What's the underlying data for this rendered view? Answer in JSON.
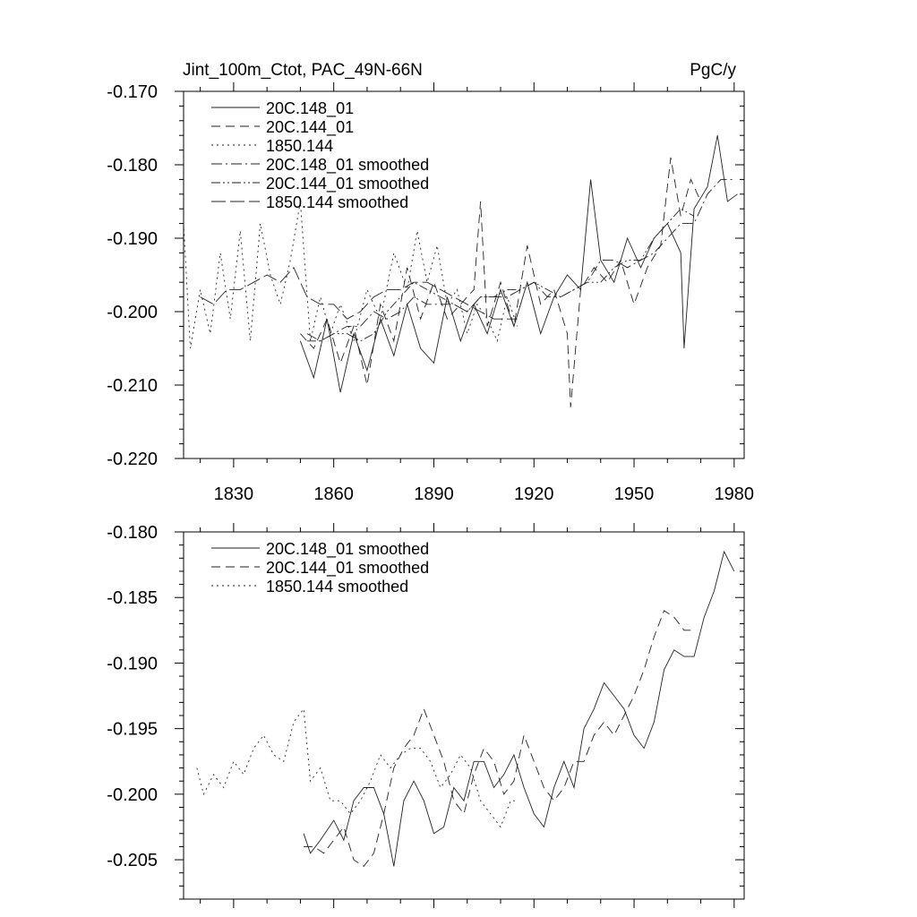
{
  "chart_data": [
    {
      "type": "line",
      "title": "Jint_100m_Ctot, PAC_49N-66N",
      "units": "PgC/y",
      "xlabel": "",
      "ylabel": "",
      "xlim": [
        1815,
        1983
      ],
      "ylim": [
        -0.22,
        -0.17
      ],
      "xticks": [
        1830,
        1860,
        1890,
        1920,
        1950,
        1980
      ],
      "xtick_labels": [
        "1830",
        "1860",
        "1890",
        "1920",
        "1950",
        "1980"
      ],
      "yticks": [
        -0.22,
        -0.21,
        -0.2,
        -0.19,
        -0.18,
        -0.17
      ],
      "ytick_labels": [
        "-0.220",
        "-0.210",
        "-0.200",
        "-0.190",
        "-0.180",
        "-0.170"
      ],
      "legend": "top-left",
      "series": [
        {
          "name": "20C.148_01",
          "style": "solid",
          "x": [
            1850,
            1854,
            1858,
            1862,
            1866,
            1870,
            1874,
            1878,
            1882,
            1886,
            1890,
            1894,
            1898,
            1902,
            1906,
            1910,
            1914,
            1918,
            1922,
            1926,
            1930,
            1934,
            1937,
            1940,
            1944,
            1948,
            1952,
            1956,
            1960,
            1964,
            1965,
            1968,
            1972,
            1975,
            1978,
            1981
          ],
          "y": [
            -0.204,
            -0.209,
            -0.201,
            -0.211,
            -0.203,
            -0.208,
            -0.201,
            -0.206,
            -0.199,
            -0.205,
            -0.207,
            -0.198,
            -0.204,
            -0.199,
            -0.203,
            -0.197,
            -0.202,
            -0.196,
            -0.203,
            -0.198,
            -0.195,
            -0.197,
            -0.182,
            -0.193,
            -0.196,
            -0.19,
            -0.194,
            -0.19,
            -0.188,
            -0.192,
            -0.205,
            -0.186,
            -0.183,
            -0.176,
            -0.185,
            -0.184
          ]
        },
        {
          "name": "20C.144_01",
          "style": "dashed",
          "x": [
            1850,
            1854,
            1858,
            1862,
            1866,
            1870,
            1874,
            1878,
            1882,
            1886,
            1890,
            1894,
            1898,
            1902,
            1904,
            1906,
            1910,
            1914,
            1918,
            1922,
            1926,
            1930,
            1931,
            1934,
            1938,
            1942,
            1946,
            1950,
            1954,
            1958,
            1961,
            1964,
            1967,
            1970
          ],
          "y": [
            -0.203,
            -0.205,
            -0.201,
            -0.207,
            -0.202,
            -0.21,
            -0.199,
            -0.204,
            -0.194,
            -0.201,
            -0.196,
            -0.201,
            -0.199,
            -0.197,
            -0.185,
            -0.202,
            -0.196,
            -0.202,
            -0.191,
            -0.199,
            -0.197,
            -0.203,
            -0.213,
            -0.197,
            -0.194,
            -0.196,
            -0.193,
            -0.199,
            -0.194,
            -0.191,
            -0.179,
            -0.187,
            -0.182,
            -0.185
          ]
        },
        {
          "name": "1850.144",
          "style": "dotted",
          "x": [
            1815,
            1817,
            1820,
            1823,
            1826,
            1829,
            1832,
            1835,
            1838,
            1841,
            1844,
            1847,
            1850,
            1853,
            1856,
            1859,
            1862,
            1866,
            1870,
            1874,
            1878,
            1882,
            1885,
            1888,
            1891,
            1894,
            1897,
            1900,
            1903,
            1906,
            1909,
            1912,
            1915
          ],
          "y": [
            -0.188,
            -0.205,
            -0.197,
            -0.203,
            -0.192,
            -0.201,
            -0.189,
            -0.204,
            -0.188,
            -0.195,
            -0.199,
            -0.193,
            -0.185,
            -0.204,
            -0.198,
            -0.203,
            -0.199,
            -0.204,
            -0.197,
            -0.201,
            -0.192,
            -0.197,
            -0.189,
            -0.196,
            -0.191,
            -0.199,
            -0.197,
            -0.203,
            -0.199,
            -0.201,
            -0.204,
            -0.198,
            -0.202
          ]
        },
        {
          "name": "20C.148_01 smoothed",
          "style": "dashdot",
          "x": [
            1852,
            1856,
            1860,
            1864,
            1868,
            1872,
            1876,
            1880,
            1884,
            1888,
            1892,
            1896,
            1900,
            1904,
            1908,
            1912,
            1916,
            1920,
            1924,
            1928,
            1932,
            1936,
            1940,
            1944,
            1948,
            1952,
            1956,
            1960,
            1964,
            1968,
            1972,
            1976,
            1980
          ],
          "y": [
            -0.203,
            -0.204,
            -0.203,
            -0.202,
            -0.202,
            -0.2,
            -0.201,
            -0.2,
            -0.198,
            -0.199,
            -0.199,
            -0.199,
            -0.2,
            -0.198,
            -0.198,
            -0.198,
            -0.197,
            -0.196,
            -0.198,
            -0.198,
            -0.197,
            -0.196,
            -0.193,
            -0.193,
            -0.194,
            -0.193,
            -0.192,
            -0.19,
            -0.188,
            -0.188,
            -0.184,
            -0.182,
            -0.182
          ]
        },
        {
          "name": "20C.144_01 smoothed",
          "style": "dashdotdot",
          "x": [
            1852,
            1856,
            1860,
            1864,
            1868,
            1872,
            1876,
            1880,
            1884,
            1888,
            1892,
            1896,
            1900,
            1904,
            1908,
            1912,
            1916,
            1920,
            1924,
            1928,
            1932,
            1936,
            1940,
            1944,
            1948,
            1952,
            1956,
            1960,
            1964,
            1968
          ],
          "y": [
            -0.204,
            -0.204,
            -0.203,
            -0.203,
            -0.204,
            -0.203,
            -0.2,
            -0.198,
            -0.196,
            -0.197,
            -0.198,
            -0.199,
            -0.2,
            -0.198,
            -0.198,
            -0.197,
            -0.197,
            -0.196,
            -0.197,
            -0.198,
            -0.197,
            -0.196,
            -0.196,
            -0.194,
            -0.193,
            -0.193,
            -0.19,
            -0.188,
            -0.186,
            -0.187
          ]
        },
        {
          "name": "1850.144 smoothed",
          "style": "longdash",
          "x": [
            1820,
            1824,
            1828,
            1832,
            1836,
            1840,
            1844,
            1848,
            1852,
            1856,
            1860,
            1864,
            1868,
            1872,
            1876,
            1880,
            1884,
            1888,
            1892,
            1896,
            1900,
            1904,
            1908,
            1912,
            1915
          ],
          "y": [
            -0.198,
            -0.199,
            -0.197,
            -0.197,
            -0.196,
            -0.195,
            -0.196,
            -0.194,
            -0.198,
            -0.199,
            -0.199,
            -0.201,
            -0.2,
            -0.198,
            -0.197,
            -0.197,
            -0.196,
            -0.196,
            -0.197,
            -0.198,
            -0.199,
            -0.2,
            -0.201,
            -0.201,
            -0.201
          ]
        }
      ]
    },
    {
      "type": "line",
      "title": "",
      "xlabel": "",
      "ylabel": "",
      "xlim": [
        1815,
        1983
      ],
      "ylim": [
        -0.208,
        -0.18
      ],
      "xticks": [
        1830,
        1860,
        1890,
        1920,
        1950,
        1980
      ],
      "yticks": [
        -0.205,
        -0.2,
        -0.195,
        -0.19,
        -0.185,
        -0.18
      ],
      "ytick_labels": [
        "-0.205",
        "-0.200",
        "-0.195",
        "-0.190",
        "-0.185",
        "-0.180"
      ],
      "legend": "top-left",
      "series": [
        {
          "name": "20C.148_01 smoothed",
          "style": "solid",
          "x": [
            1851,
            1853,
            1856,
            1860,
            1863,
            1866,
            1869,
            1872,
            1875,
            1878,
            1881,
            1884,
            1887,
            1890,
            1893,
            1896,
            1899,
            1902,
            1905,
            1908,
            1911,
            1914,
            1917,
            1920,
            1923,
            1926,
            1929,
            1932,
            1935,
            1938,
            1941,
            1944,
            1947,
            1950,
            1953,
            1956,
            1959,
            1962,
            1965,
            1968,
            1971,
            1974,
            1977,
            1980
          ],
          "y": [
            -0.203,
            -0.2045,
            -0.2035,
            -0.202,
            -0.2035,
            -0.2005,
            -0.1995,
            -0.1995,
            -0.2015,
            -0.2055,
            -0.2005,
            -0.199,
            -0.2005,
            -0.203,
            -0.2025,
            -0.1995,
            -0.2005,
            -0.1975,
            -0.1975,
            -0.1995,
            -0.1985,
            -0.197,
            -0.1995,
            -0.2015,
            -0.2025,
            -0.1995,
            -0.1975,
            -0.1995,
            -0.195,
            -0.1935,
            -0.1915,
            -0.1925,
            -0.1935,
            -0.1955,
            -0.1965,
            -0.1945,
            -0.1905,
            -0.189,
            -0.1895,
            -0.1895,
            -0.1865,
            -0.1845,
            -0.1815,
            -0.183
          ]
        },
        {
          "name": "20C.144_01 smoothed",
          "style": "dashed",
          "x": [
            1851,
            1854,
            1857,
            1860,
            1863,
            1866,
            1869,
            1872,
            1875,
            1878,
            1881,
            1884,
            1887,
            1890,
            1893,
            1896,
            1899,
            1902,
            1905,
            1908,
            1911,
            1914,
            1917,
            1920,
            1923,
            1926,
            1929,
            1932,
            1935,
            1938,
            1941,
            1944,
            1947,
            1950,
            1953,
            1956,
            1959,
            1962,
            1965,
            1967
          ],
          "y": [
            -0.204,
            -0.204,
            -0.2045,
            -0.2035,
            -0.2025,
            -0.205,
            -0.2055,
            -0.2045,
            -0.2015,
            -0.198,
            -0.1965,
            -0.1955,
            -0.1935,
            -0.1955,
            -0.1975,
            -0.2005,
            -0.2015,
            -0.1985,
            -0.1965,
            -0.1975,
            -0.2,
            -0.199,
            -0.1955,
            -0.1975,
            -0.1995,
            -0.2005,
            -0.1995,
            -0.1975,
            -0.1975,
            -0.1955,
            -0.1945,
            -0.1955,
            -0.194,
            -0.1925,
            -0.1905,
            -0.188,
            -0.186,
            -0.1865,
            -0.1875,
            -0.1875
          ]
        },
        {
          "name": "1850.144 smoothed",
          "style": "dotted",
          "x": [
            1819,
            1821,
            1824,
            1827,
            1830,
            1833,
            1836,
            1839,
            1842,
            1845,
            1848,
            1851,
            1853,
            1856,
            1859,
            1862,
            1865,
            1868,
            1871,
            1874,
            1877,
            1880,
            1883,
            1886,
            1889,
            1892,
            1895,
            1898,
            1901,
            1904,
            1907,
            1910,
            1913,
            1915
          ],
          "y": [
            -0.198,
            -0.2,
            -0.1985,
            -0.1995,
            -0.1975,
            -0.1985,
            -0.1965,
            -0.1955,
            -0.197,
            -0.1975,
            -0.1945,
            -0.1935,
            -0.199,
            -0.198,
            -0.2005,
            -0.2005,
            -0.2015,
            -0.2005,
            -0.199,
            -0.197,
            -0.198,
            -0.197,
            -0.1965,
            -0.1965,
            -0.1975,
            -0.1995,
            -0.1985,
            -0.197,
            -0.198,
            -0.2005,
            -0.2015,
            -0.2025,
            -0.2005,
            -0.2005
          ]
        }
      ]
    }
  ]
}
